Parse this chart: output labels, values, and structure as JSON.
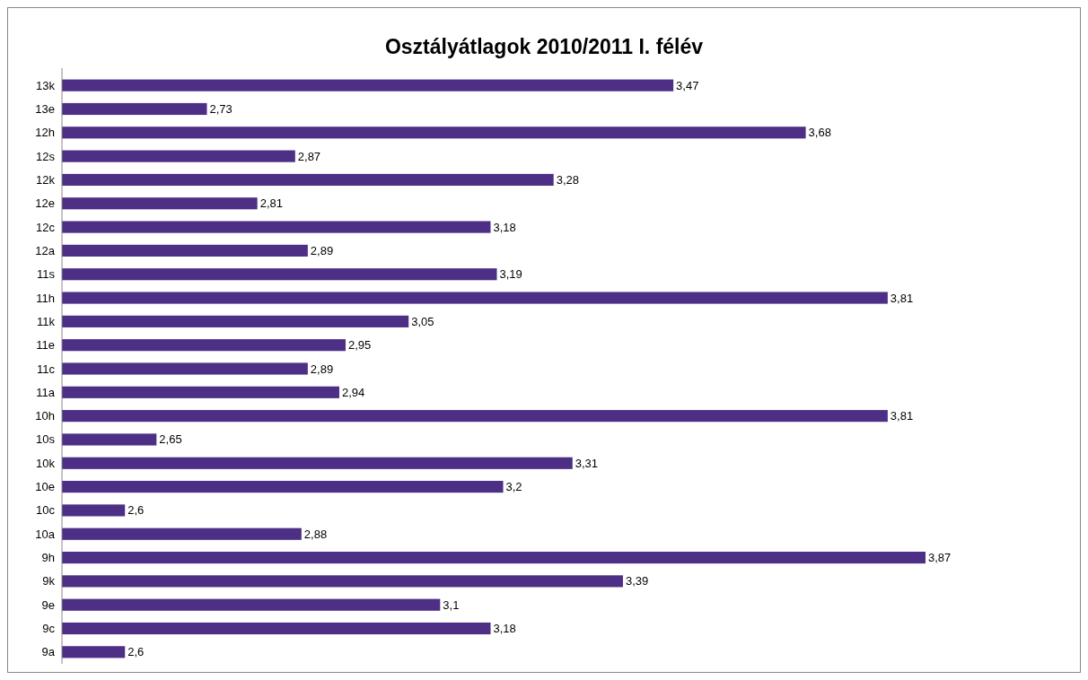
{
  "chart_data": {
    "type": "bar",
    "orientation": "horizontal",
    "title": "Osztályátlagok 2010/2011 I. félév",
    "categories": [
      "13k",
      "13e",
      "12h",
      "12s",
      "12k",
      "12e",
      "12c",
      "12a",
      "11s",
      "11h",
      "11k",
      "11e",
      "11c",
      "11a",
      "10h",
      "10s",
      "10k",
      "10e",
      "10c",
      "10a",
      "9h",
      "9k",
      "9e",
      "9c",
      "9a"
    ],
    "values": [
      3.47,
      2.73,
      3.68,
      2.87,
      3.28,
      2.81,
      3.18,
      2.89,
      3.19,
      3.81,
      3.05,
      2.95,
      2.89,
      2.94,
      3.81,
      2.65,
      3.31,
      3.2,
      2.6,
      2.88,
      3.87,
      3.39,
      3.1,
      3.18,
      2.6
    ],
    "value_labels": [
      "3,47",
      "2,73",
      "3,68",
      "2,87",
      "3,28",
      "2,81",
      "3,18",
      "2,89",
      "3,19",
      "3,81",
      "3,05",
      "2,95",
      "2,89",
      "2,94",
      "3,81",
      "2,65",
      "3,31",
      "3,2",
      "2,6",
      "2,88",
      "3,87",
      "3,39",
      "3,1",
      "3,18",
      "2,6"
    ],
    "color": "#4e2f86",
    "xlim": [
      2.5,
      3.87
    ],
    "tick_labels": "y"
  }
}
